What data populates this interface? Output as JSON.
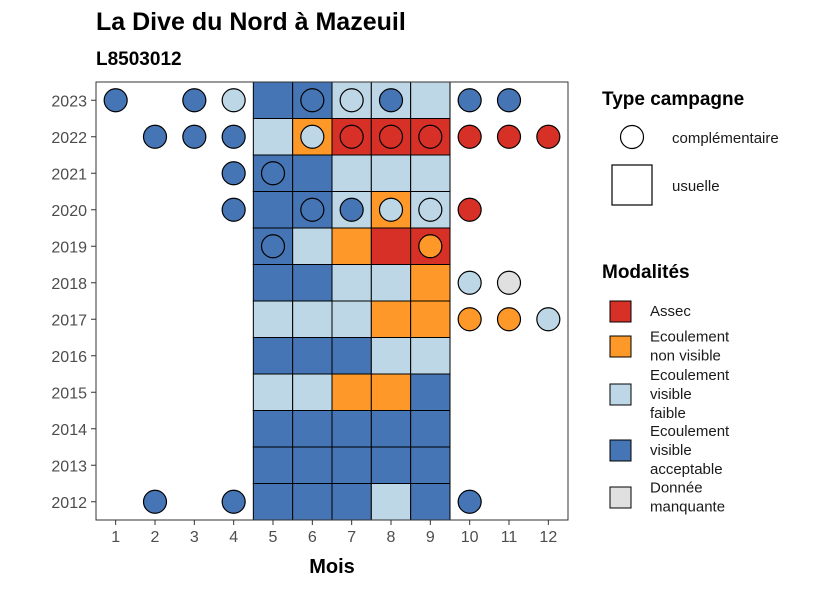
{
  "chart_data": {
    "type": "heatmap",
    "title": "La Dive du Nord à Mazeuil",
    "subtitle": "L8503012",
    "xlabel": "Mois",
    "ylabel": "",
    "x_ticks": [
      "1",
      "2",
      "3",
      "4",
      "5",
      "6",
      "7",
      "8",
      "9",
      "10",
      "11",
      "12"
    ],
    "y_ticks": [
      "2012",
      "2013",
      "2014",
      "2015",
      "2016",
      "2017",
      "2018",
      "2019",
      "2020",
      "2021",
      "2022",
      "2023"
    ],
    "xlim": [
      0.5,
      12.5
    ],
    "ylim": [
      2011.5,
      2023.5
    ],
    "grid": false,
    "legend_position": "right",
    "legend_campagne": {
      "title": "Type campagne",
      "items": [
        {
          "key": "complementaire",
          "label": "complémentaire",
          "shape": "circle"
        },
        {
          "key": "usuelle",
          "label": "usuelle",
          "shape": "square"
        }
      ]
    },
    "legend_modalites": {
      "title": "Modalités",
      "items": [
        {
          "key": "assec",
          "lines": [
            "Assec"
          ],
          "color": "#d73027"
        },
        {
          "key": "nonvis",
          "lines": [
            "Ecoulement",
            "non visible"
          ],
          "color": "#fe9929"
        },
        {
          "key": "faible",
          "lines": [
            "Ecoulement",
            "visible",
            "faible"
          ],
          "color": "#bdd7e7"
        },
        {
          "key": "accept",
          "lines": [
            "Ecoulement",
            "visible",
            "acceptable"
          ],
          "color": "#4575b4"
        },
        {
          "key": "manq",
          "lines": [
            "Donnée",
            "manquante"
          ],
          "color": "#e0e0e0"
        }
      ]
    },
    "usuelle": [
      {
        "year": 2023,
        "month": 5,
        "mod": "accept"
      },
      {
        "year": 2023,
        "month": 6,
        "mod": "accept"
      },
      {
        "year": 2023,
        "month": 7,
        "mod": "faible"
      },
      {
        "year": 2023,
        "month": 8,
        "mod": "faible"
      },
      {
        "year": 2023,
        "month": 9,
        "mod": "faible"
      },
      {
        "year": 2022,
        "month": 5,
        "mod": "faible"
      },
      {
        "year": 2022,
        "month": 6,
        "mod": "nonvis"
      },
      {
        "year": 2022,
        "month": 7,
        "mod": "assec"
      },
      {
        "year": 2022,
        "month": 8,
        "mod": "assec"
      },
      {
        "year": 2022,
        "month": 9,
        "mod": "assec"
      },
      {
        "year": 2021,
        "month": 5,
        "mod": "accept"
      },
      {
        "year": 2021,
        "month": 6,
        "mod": "accept"
      },
      {
        "year": 2021,
        "month": 7,
        "mod": "faible"
      },
      {
        "year": 2021,
        "month": 8,
        "mod": "faible"
      },
      {
        "year": 2021,
        "month": 9,
        "mod": "faible"
      },
      {
        "year": 2020,
        "month": 5,
        "mod": "accept"
      },
      {
        "year": 2020,
        "month": 6,
        "mod": "accept"
      },
      {
        "year": 2020,
        "month": 7,
        "mod": "faible"
      },
      {
        "year": 2020,
        "month": 8,
        "mod": "nonvis"
      },
      {
        "year": 2020,
        "month": 9,
        "mod": "faible"
      },
      {
        "year": 2019,
        "month": 5,
        "mod": "accept"
      },
      {
        "year": 2019,
        "month": 6,
        "mod": "faible"
      },
      {
        "year": 2019,
        "month": 7,
        "mod": "nonvis"
      },
      {
        "year": 2019,
        "month": 8,
        "mod": "assec"
      },
      {
        "year": 2019,
        "month": 9,
        "mod": "assec"
      },
      {
        "year": 2018,
        "month": 5,
        "mod": "accept"
      },
      {
        "year": 2018,
        "month": 6,
        "mod": "accept"
      },
      {
        "year": 2018,
        "month": 7,
        "mod": "faible"
      },
      {
        "year": 2018,
        "month": 8,
        "mod": "faible"
      },
      {
        "year": 2018,
        "month": 9,
        "mod": "nonvis"
      },
      {
        "year": 2017,
        "month": 5,
        "mod": "faible"
      },
      {
        "year": 2017,
        "month": 6,
        "mod": "faible"
      },
      {
        "year": 2017,
        "month": 7,
        "mod": "faible"
      },
      {
        "year": 2017,
        "month": 8,
        "mod": "nonvis"
      },
      {
        "year": 2017,
        "month": 9,
        "mod": "nonvis"
      },
      {
        "year": 2016,
        "month": 5,
        "mod": "accept"
      },
      {
        "year": 2016,
        "month": 6,
        "mod": "accept"
      },
      {
        "year": 2016,
        "month": 7,
        "mod": "accept"
      },
      {
        "year": 2016,
        "month": 8,
        "mod": "faible"
      },
      {
        "year": 2016,
        "month": 9,
        "mod": "faible"
      },
      {
        "year": 2015,
        "month": 5,
        "mod": "faible"
      },
      {
        "year": 2015,
        "month": 6,
        "mod": "faible"
      },
      {
        "year": 2015,
        "month": 7,
        "mod": "nonvis"
      },
      {
        "year": 2015,
        "month": 8,
        "mod": "nonvis"
      },
      {
        "year": 2015,
        "month": 9,
        "mod": "accept"
      },
      {
        "year": 2014,
        "month": 5,
        "mod": "accept"
      },
      {
        "year": 2014,
        "month": 6,
        "mod": "accept"
      },
      {
        "year": 2014,
        "month": 7,
        "mod": "accept"
      },
      {
        "year": 2014,
        "month": 8,
        "mod": "accept"
      },
      {
        "year": 2014,
        "month": 9,
        "mod": "accept"
      },
      {
        "year": 2013,
        "month": 5,
        "mod": "accept"
      },
      {
        "year": 2013,
        "month": 6,
        "mod": "accept"
      },
      {
        "year": 2013,
        "month": 7,
        "mod": "accept"
      },
      {
        "year": 2013,
        "month": 8,
        "mod": "accept"
      },
      {
        "year": 2013,
        "month": 9,
        "mod": "accept"
      },
      {
        "year": 2012,
        "month": 5,
        "mod": "accept"
      },
      {
        "year": 2012,
        "month": 6,
        "mod": "accept"
      },
      {
        "year": 2012,
        "month": 7,
        "mod": "accept"
      },
      {
        "year": 2012,
        "month": 8,
        "mod": "faible"
      },
      {
        "year": 2012,
        "month": 9,
        "mod": "accept"
      }
    ],
    "complementaire": [
      {
        "year": 2023,
        "month": 1,
        "mod": "accept"
      },
      {
        "year": 2023,
        "month": 3,
        "mod": "accept"
      },
      {
        "year": 2023,
        "month": 4,
        "mod": "faible"
      },
      {
        "year": 2023,
        "month": 6,
        "mod": "accept"
      },
      {
        "year": 2023,
        "month": 7,
        "mod": "faible"
      },
      {
        "year": 2023,
        "month": 8,
        "mod": "accept"
      },
      {
        "year": 2023,
        "month": 10,
        "mod": "accept"
      },
      {
        "year": 2023,
        "month": 11,
        "mod": "accept"
      },
      {
        "year": 2022,
        "month": 2,
        "mod": "accept"
      },
      {
        "year": 2022,
        "month": 3,
        "mod": "accept"
      },
      {
        "year": 2022,
        "month": 4,
        "mod": "accept"
      },
      {
        "year": 2022,
        "month": 6,
        "mod": "faible"
      },
      {
        "year": 2022,
        "month": 7,
        "mod": "assec"
      },
      {
        "year": 2022,
        "month": 8,
        "mod": "assec"
      },
      {
        "year": 2022,
        "month": 9,
        "mod": "assec"
      },
      {
        "year": 2022,
        "month": 10,
        "mod": "assec"
      },
      {
        "year": 2022,
        "month": 11,
        "mod": "assec"
      },
      {
        "year": 2022,
        "month": 12,
        "mod": "assec"
      },
      {
        "year": 2021,
        "month": 4,
        "mod": "accept"
      },
      {
        "year": 2021,
        "month": 5,
        "mod": "accept"
      },
      {
        "year": 2020,
        "month": 4,
        "mod": "accept"
      },
      {
        "year": 2020,
        "month": 6,
        "mod": "accept"
      },
      {
        "year": 2020,
        "month": 7,
        "mod": "accept"
      },
      {
        "year": 2020,
        "month": 8,
        "mod": "faible"
      },
      {
        "year": 2020,
        "month": 9,
        "mod": "faible"
      },
      {
        "year": 2020,
        "month": 10,
        "mod": "assec"
      },
      {
        "year": 2019,
        "month": 5,
        "mod": "accept"
      },
      {
        "year": 2019,
        "month": 9,
        "mod": "nonvis"
      },
      {
        "year": 2018,
        "month": 10,
        "mod": "faible"
      },
      {
        "year": 2018,
        "month": 11,
        "mod": "manq"
      },
      {
        "year": 2017,
        "month": 10,
        "mod": "nonvis"
      },
      {
        "year": 2017,
        "month": 11,
        "mod": "nonvis"
      },
      {
        "year": 2017,
        "month": 12,
        "mod": "faible"
      },
      {
        "year": 2012,
        "month": 2,
        "mod": "accept"
      },
      {
        "year": 2012,
        "month": 4,
        "mod": "accept"
      },
      {
        "year": 2012,
        "month": 10,
        "mod": "accept"
      }
    ]
  }
}
